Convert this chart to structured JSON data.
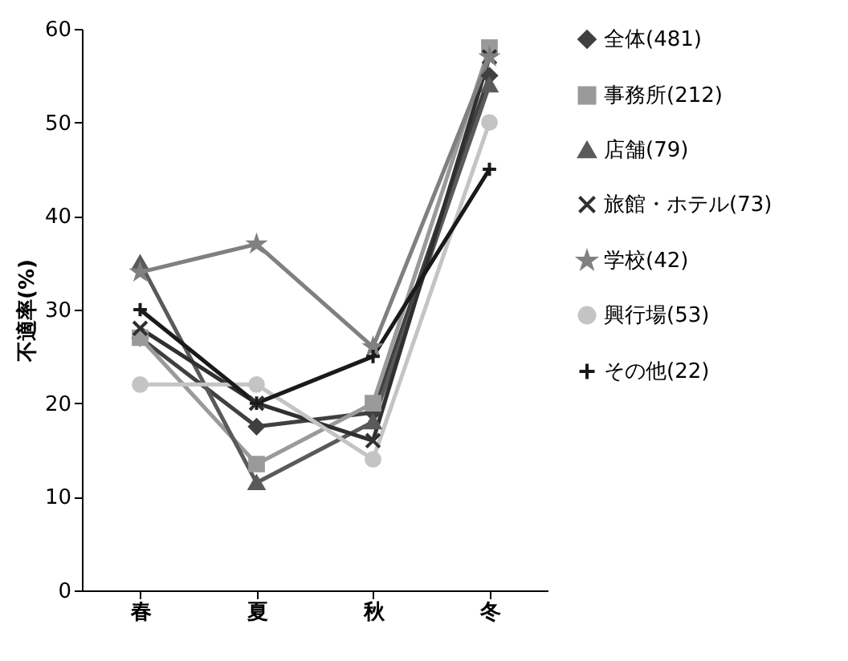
{
  "chart_data": {
    "type": "line",
    "ylabel": "不適率(%)",
    "categories": [
      "春",
      "夏",
      "秋",
      "冬"
    ],
    "ylim": [
      0,
      60
    ],
    "yticks": [
      0,
      10,
      20,
      30,
      40,
      50,
      60
    ],
    "grid": false,
    "legend": "right",
    "line_style": "solid",
    "series": [
      {
        "name": "全体(481)",
        "color": "#404040",
        "marker": "diamond",
        "values": [
          27,
          17.5,
          19,
          55
        ]
      },
      {
        "name": "事務所(212)",
        "color": "#9a9a9a",
        "marker": "square",
        "values": [
          27,
          13.5,
          20,
          58
        ]
      },
      {
        "name": "店舗(79)",
        "color": "#5a5a5a",
        "marker": "triangle",
        "values": [
          35,
          11.5,
          18,
          54
        ]
      },
      {
        "name": "旅館・ホテル(73)",
        "color": "#303030",
        "marker": "cross",
        "values": [
          28,
          20,
          16,
          57
        ]
      },
      {
        "name": "学校(42)",
        "color": "#808080",
        "marker": "star",
        "values": [
          34,
          37,
          26,
          57
        ]
      },
      {
        "name": "興行場(53)",
        "color": "#c4c4c4",
        "marker": "circle",
        "values": [
          22,
          22,
          14,
          50
        ]
      },
      {
        "name": "その他(22)",
        "color": "#1a1a1a",
        "marker": "plus",
        "values": [
          30,
          20,
          25,
          45
        ]
      }
    ]
  }
}
